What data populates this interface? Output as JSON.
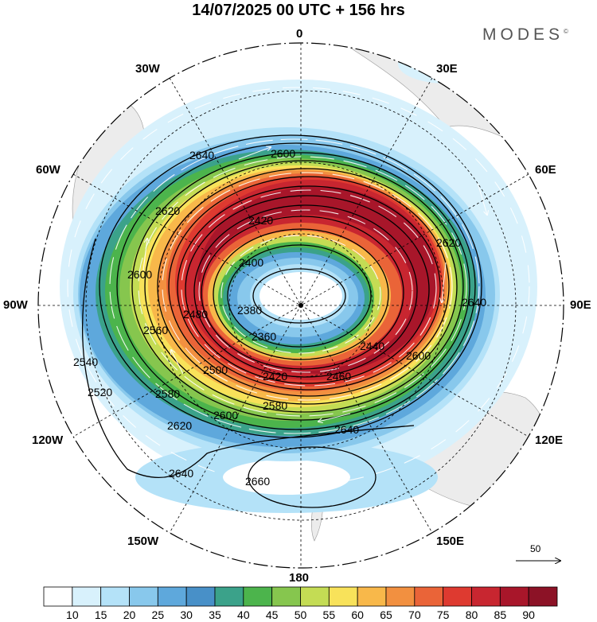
{
  "title": "14/07/2025  00 UTC  + 156 hrs",
  "brand": "MODES",
  "brand_mark": "©",
  "longitudes": {
    "n": "0",
    "s": "180",
    "w": "90W",
    "e": "90E",
    "w30": "30W",
    "e30": "30E",
    "w60": "60W",
    "e60": "60E",
    "w120": "120W",
    "e120": "120E",
    "w150": "150W",
    "e150": "150E"
  },
  "reference_vector": "50",
  "colorbar": {
    "labels": [
      "10",
      "15",
      "20",
      "25",
      "30",
      "35",
      "40",
      "45",
      "50",
      "55",
      "60",
      "65",
      "70",
      "75",
      "80",
      "85",
      "90"
    ],
    "colors": [
      "#ffffff",
      "#d8f1fc",
      "#b4e2f8",
      "#88c8ec",
      "#5ea8dc",
      "#4890c8",
      "#3ba28a",
      "#4cb44c",
      "#86c64e",
      "#c4dc54",
      "#f8e25a",
      "#f8b84a",
      "#f29040",
      "#ea6438",
      "#de3a30",
      "#c82630",
      "#a8162a",
      "#8c1226"
    ]
  },
  "contour_labels": [
    "2640",
    "2600",
    "2620",
    "2580",
    "2560",
    "2540",
    "2520",
    "2500",
    "2480",
    "2460",
    "2440",
    "2420",
    "2400",
    "2380",
    "2360",
    "2660"
  ],
  "map": {
    "projection": "polar-stereographic-south",
    "field": "wind speed (shaded), geopotential height contours, streamlines"
  }
}
